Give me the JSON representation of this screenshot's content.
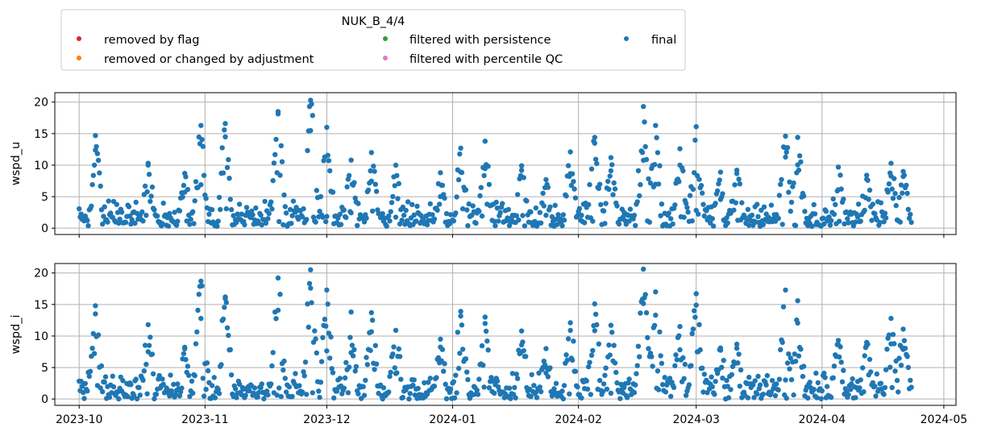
{
  "legend": {
    "title": "NUK_B_4/4",
    "placement": "top",
    "entries": [
      {
        "label": "removed by flag",
        "color": "#d62728"
      },
      {
        "label": "removed or changed by adjustment",
        "color": "#ff7f0e"
      },
      {
        "label": "filtered with persistence",
        "color": "#2ca02c"
      },
      {
        "label": "filtered with percentile QC",
        "color": "#e377c2"
      },
      {
        "label": "final",
        "color": "#1f77b4"
      }
    ]
  },
  "chart_data": [
    {
      "type": "scatter",
      "ylabel": "wspd_u",
      "xlim": [
        "2023-09-25",
        "2024-05-04"
      ],
      "ylim": [
        -1,
        21.5
      ],
      "x_ticks": [
        "2023-10",
        "2023-11",
        "2023-12",
        "2024-01",
        "2024-02",
        "2024-03",
        "2024-04",
        "2024-05"
      ],
      "y_ticks": [
        0,
        5,
        10,
        15,
        20
      ],
      "show_x_tick_labels": false,
      "grid": true,
      "x_range": [
        "2023-10-01",
        "2024-04-23"
      ],
      "series": [
        {
          "name": "final",
          "color": "#1f77b4",
          "baseline_range": [
            0.3,
            4.5
          ],
          "peaks": [
            [
              "2023-10-05",
              14.7
            ],
            [
              "2023-10-18",
              10.3
            ],
            [
              "2023-10-27",
              8.7
            ],
            [
              "2023-10-31",
              16.3
            ],
            [
              "2023-11-06",
              16.6
            ],
            [
              "2023-11-19",
              18.5
            ],
            [
              "2023-11-27",
              20.3
            ],
            [
              "2023-12-01",
              16.0
            ],
            [
              "2023-12-07",
              10.8
            ],
            [
              "2023-12-12",
              12.0
            ],
            [
              "2023-12-18",
              10.0
            ],
            [
              "2023-12-29",
              8.8
            ],
            [
              "2024-01-03",
              12.7
            ],
            [
              "2024-01-09",
              13.8
            ],
            [
              "2024-01-18",
              9.9
            ],
            [
              "2024-01-24",
              7.7
            ],
            [
              "2024-01-30",
              12.1
            ],
            [
              "2024-02-05",
              14.4
            ],
            [
              "2024-02-09",
              11.2
            ],
            [
              "2024-02-17",
              19.3
            ],
            [
              "2024-02-20",
              16.3
            ],
            [
              "2024-02-26",
              12.6
            ],
            [
              "2024-03-01",
              16.1
            ],
            [
              "2024-03-07",
              8.9
            ],
            [
              "2024-03-11",
              9.2
            ],
            [
              "2024-03-23",
              14.6
            ],
            [
              "2024-03-26",
              14.4
            ],
            [
              "2024-04-05",
              9.7
            ],
            [
              "2024-04-12",
              8.4
            ],
            [
              "2024-04-18",
              10.3
            ],
            [
              "2024-04-21",
              9.0
            ]
          ]
        }
      ]
    },
    {
      "type": "scatter",
      "ylabel": "wspd_i",
      "xlim": [
        "2023-09-25",
        "2024-05-04"
      ],
      "ylim": [
        -1,
        21.5
      ],
      "x_ticks": [
        "2023-10",
        "2023-11",
        "2023-12",
        "2024-01",
        "2024-02",
        "2024-03",
        "2024-04",
        "2024-05"
      ],
      "y_ticks": [
        0,
        5,
        10,
        15,
        20
      ],
      "show_x_tick_labels": true,
      "grid": true,
      "x_range": [
        "2023-10-01",
        "2024-04-23"
      ],
      "series": [
        {
          "name": "final",
          "color": "#1f77b4",
          "baseline_range": [
            0.0,
            4.5
          ],
          "peaks": [
            [
              "2023-10-05",
              14.8
            ],
            [
              "2023-10-18",
              11.8
            ],
            [
              "2023-10-27",
              8.2
            ],
            [
              "2023-10-31",
              18.7
            ],
            [
              "2023-11-06",
              16.2
            ],
            [
              "2023-11-19",
              19.2
            ],
            [
              "2023-11-27",
              20.5
            ],
            [
              "2023-12-01",
              17.3
            ],
            [
              "2023-12-07",
              13.8
            ],
            [
              "2023-12-12",
              13.7
            ],
            [
              "2023-12-18",
              10.9
            ],
            [
              "2023-12-29",
              9.5
            ],
            [
              "2024-01-03",
              13.9
            ],
            [
              "2024-01-09",
              13.0
            ],
            [
              "2024-01-18",
              10.8
            ],
            [
              "2024-01-24",
              8.0
            ],
            [
              "2024-01-30",
              12.1
            ],
            [
              "2024-02-05",
              15.1
            ],
            [
              "2024-02-09",
              11.7
            ],
            [
              "2024-02-17",
              20.6
            ],
            [
              "2024-02-20",
              17.0
            ],
            [
              "2024-02-26",
              11.5
            ],
            [
              "2024-03-01",
              16.7
            ],
            [
              "2024-03-07",
              8.1
            ],
            [
              "2024-03-11",
              8.7
            ],
            [
              "2024-03-23",
              17.3
            ],
            [
              "2024-03-26",
              15.6
            ],
            [
              "2024-04-05",
              9.3
            ],
            [
              "2024-04-12",
              9.0
            ],
            [
              "2024-04-18",
              12.8
            ],
            [
              "2024-04-21",
              11.1
            ]
          ]
        }
      ]
    }
  ]
}
